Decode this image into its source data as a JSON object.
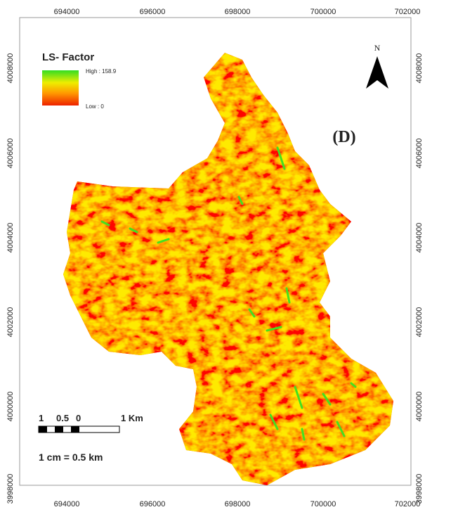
{
  "map": {
    "panel_label": "(D)",
    "north": "N",
    "legend": {
      "title": "LS- Factor",
      "high": "High : 158.9",
      "low": "Low : 0"
    },
    "x_labels": [
      "694000",
      "696000",
      "698000",
      "700000",
      "702000"
    ],
    "y_labels": [
      "4008000",
      "4006000",
      "4004000",
      "4002000",
      "4000000",
      "3998000"
    ],
    "scale_bar": {
      "labels": [
        "1",
        "0.5",
        "0",
        "1 Km"
      ],
      "ratio": "1 cm = 0.5 km"
    }
  }
}
